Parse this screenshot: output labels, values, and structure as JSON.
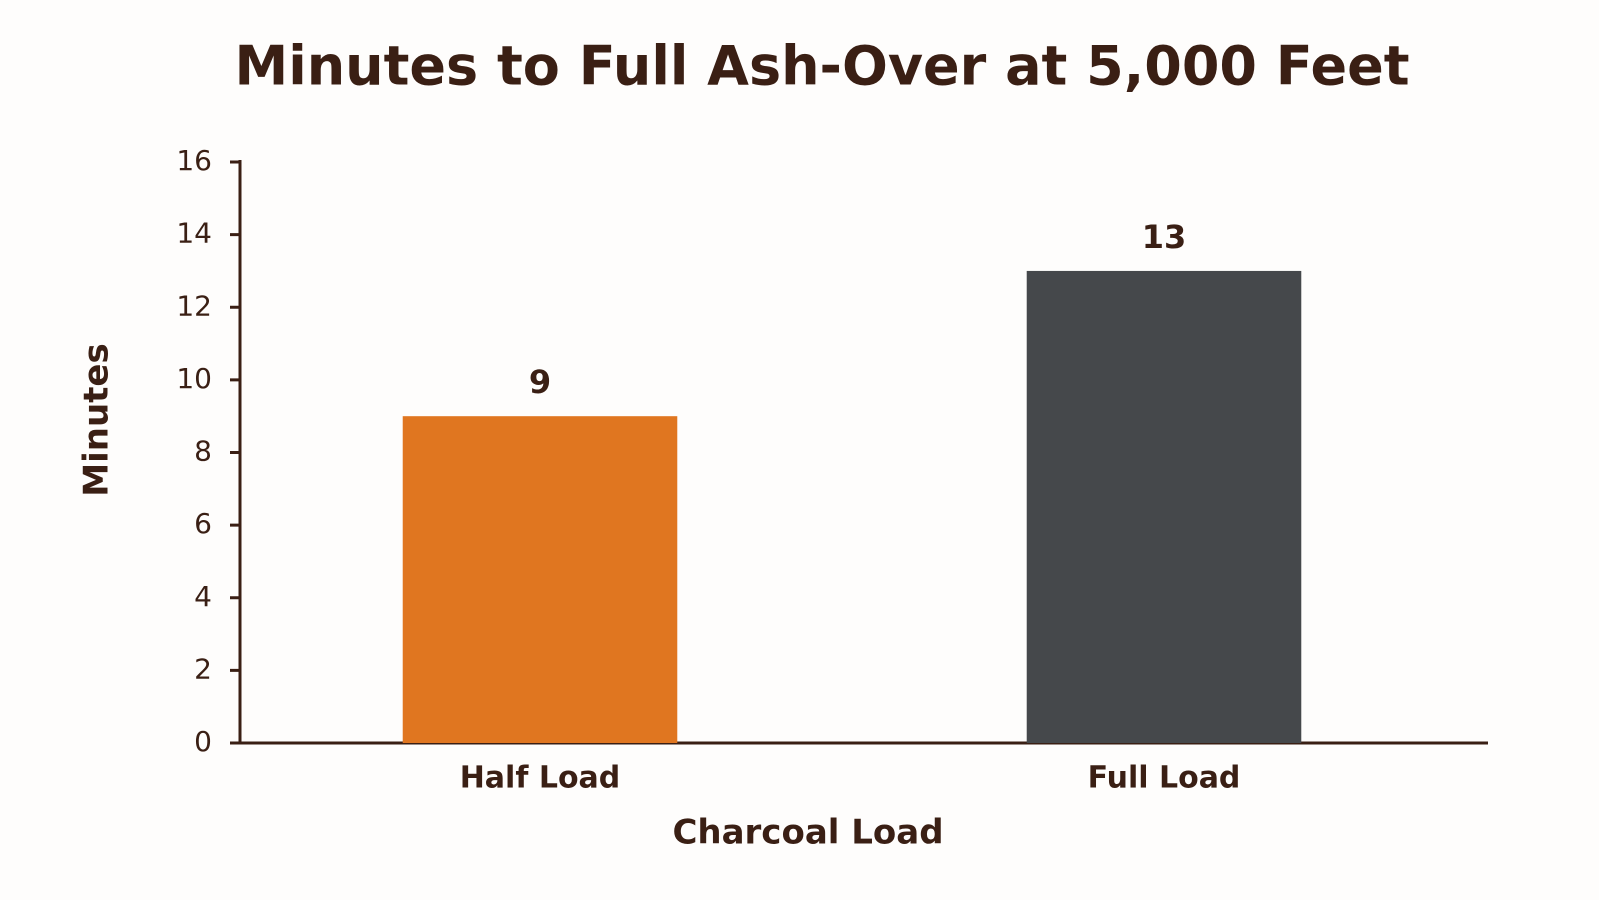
{
  "chart_data": {
    "type": "bar",
    "title": "Minutes to Full Ash-Over at 5,000 Feet",
    "x_label": "Charcoal Load",
    "y_label": "Minutes",
    "categories": [
      "Half Load",
      "Full Load"
    ],
    "values": [
      9,
      13
    ],
    "colors": [
      "#e07620",
      "#45484b"
    ],
    "ylim": [
      0,
      16
    ],
    "yticks": [
      0,
      2,
      4,
      6,
      8,
      10,
      12,
      14,
      16
    ],
    "grid": false
  }
}
